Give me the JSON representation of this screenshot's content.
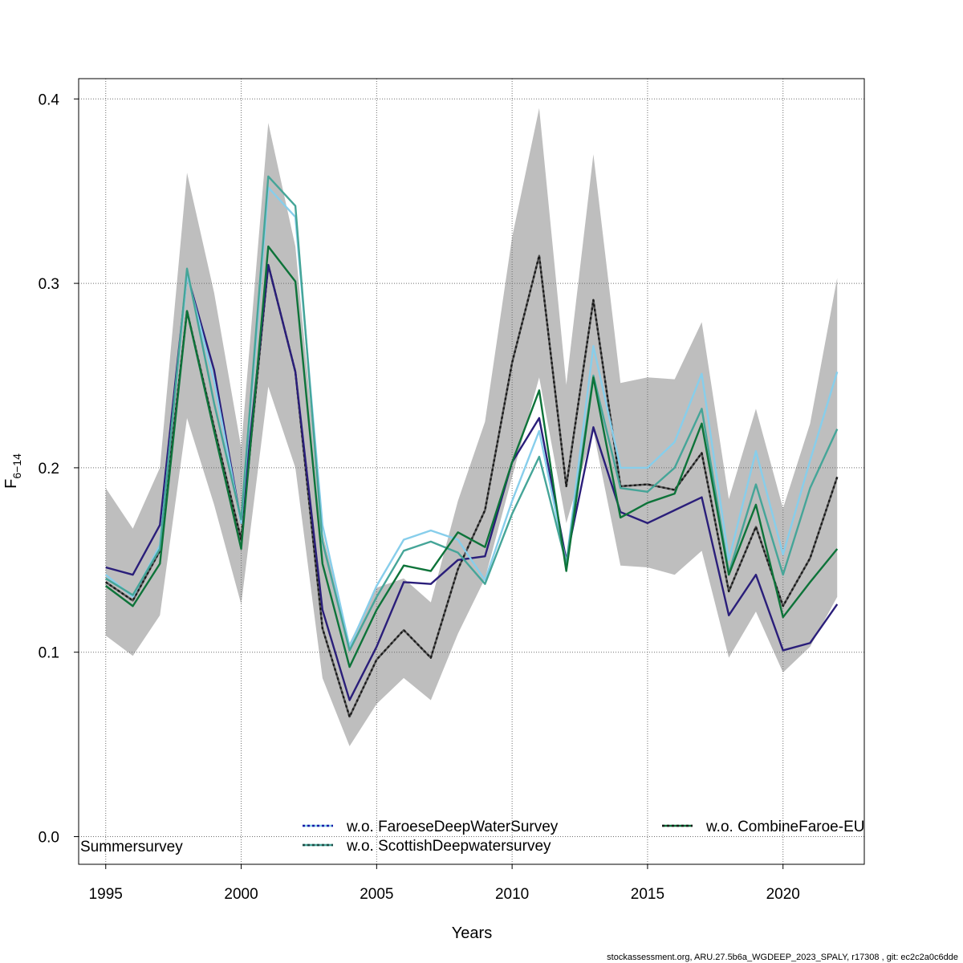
{
  "chart_data": {
    "type": "line",
    "xlabel": "Years",
    "ylabel_main": "F",
    "ylabel_sub": "6−14",
    "xlim": [
      1994,
      2023
    ],
    "ylim": [
      -0.015,
      0.411
    ],
    "xticks": [
      1995,
      2000,
      2005,
      2010,
      2015,
      2020
    ],
    "yticks": [
      0.0,
      0.1,
      0.2,
      0.3,
      0.4
    ],
    "ytick_labels": [
      "0.0",
      "0.1",
      "0.2",
      "0.3",
      "0.4"
    ],
    "grid": true,
    "x": [
      1995,
      1996,
      1997,
      1998,
      1999,
      2000,
      2001,
      2002,
      2003,
      2004,
      2005,
      2006,
      2007,
      2008,
      2009,
      2010,
      2011,
      2012,
      2013,
      2014,
      2015,
      2016,
      2017,
      2018,
      2019,
      2020,
      2021,
      2022
    ],
    "ci_band": {
      "upper": [
        0.189,
        0.167,
        0.2,
        0.36,
        0.295,
        0.211,
        0.387,
        0.32,
        0.165,
        0.105,
        0.135,
        0.14,
        0.127,
        0.182,
        0.225,
        0.325,
        0.395,
        0.245,
        0.37,
        0.246,
        0.249,
        0.248,
        0.279,
        0.183,
        0.232,
        0.178,
        0.224,
        0.303
      ],
      "lower": [
        0.109,
        0.098,
        0.12,
        0.227,
        0.18,
        0.126,
        0.244,
        0.2,
        0.086,
        0.049,
        0.072,
        0.086,
        0.074,
        0.11,
        0.14,
        0.195,
        0.249,
        0.17,
        0.22,
        0.147,
        0.146,
        0.142,
        0.155,
        0.097,
        0.122,
        0.089,
        0.103,
        0.13
      ],
      "color": "#bebebe"
    },
    "series": [
      {
        "values": [
          0.138,
          0.128,
          0.155,
          0.285,
          0.222,
          0.161,
          0.31,
          0.252,
          0.113,
          0.065,
          0.096,
          0.112,
          0.097,
          0.145,
          0.177,
          0.257,
          0.315,
          0.19,
          0.291,
          0.19,
          0.191,
          0.188,
          0.208,
          0.133,
          0.168,
          0.125,
          0.151,
          0.195
        ],
        "color": "#1a1a1a",
        "dashed": true,
        "width": 2.4
      },
      {
        "values": [
          0.146,
          0.142,
          0.169,
          0.305,
          0.253,
          0.17,
          0.31,
          0.252,
          0.123,
          0.074,
          0.103,
          0.138,
          0.137,
          0.15,
          0.152,
          0.203,
          0.227,
          0.15,
          0.222,
          0.176,
          0.17,
          0.177,
          0.184,
          0.12,
          0.142,
          0.101,
          0.105,
          0.126
        ],
        "color": "#2a1e7a",
        "dashed": false,
        "width": 2.4
      },
      {
        "values": [
          0.142,
          0.13,
          0.158,
          0.305,
          0.247,
          0.17,
          0.352,
          0.336,
          0.169,
          0.103,
          0.136,
          0.161,
          0.166,
          0.161,
          0.139,
          0.182,
          0.22,
          0.148,
          0.266,
          0.2,
          0.2,
          0.214,
          0.251,
          0.15,
          0.209,
          0.153,
          0.204,
          0.252
        ],
        "color": "#87ceeb",
        "dashed": false,
        "width": 2.4
      },
      {
        "values": [
          0.14,
          0.131,
          0.156,
          0.308,
          0.235,
          0.172,
          0.358,
          0.342,
          0.16,
          0.101,
          0.13,
          0.155,
          0.16,
          0.154,
          0.137,
          0.175,
          0.206,
          0.148,
          0.25,
          0.189,
          0.187,
          0.2,
          0.232,
          0.143,
          0.191,
          0.142,
          0.189,
          0.221
        ],
        "color": "#45a598",
        "dashed": false,
        "width": 2.4
      },
      {
        "values": [
          0.136,
          0.125,
          0.148,
          0.285,
          0.22,
          0.156,
          0.32,
          0.301,
          0.148,
          0.092,
          0.123,
          0.147,
          0.144,
          0.165,
          0.157,
          0.203,
          0.242,
          0.144,
          0.249,
          0.173,
          0.181,
          0.186,
          0.224,
          0.142,
          0.18,
          0.119,
          0.138,
          0.156
        ],
        "color": "#0d7339",
        "dashed": false,
        "width": 2.4
      }
    ],
    "legend": {
      "items": [
        {
          "label": "w.o. FaroeseDeepWaterSurvey",
          "color": "#1c1aa8",
          "underlay": "#87ceeb"
        },
        {
          "label": "w.o. ScottishDeepwatersurvey",
          "color": "#1c4a45",
          "underlay": "#45a598"
        },
        {
          "label": "w.o. CombineFaroe-EU",
          "color": "#1a1a1a",
          "underlay": "#0d7339"
        }
      ],
      "partial_label": "Summersurvey"
    }
  },
  "footer": "stockassessment.org, ARU.27.5b6a_WGDEEP_2023_SPALY, r17308 , git: ec2c2a0c6dde"
}
